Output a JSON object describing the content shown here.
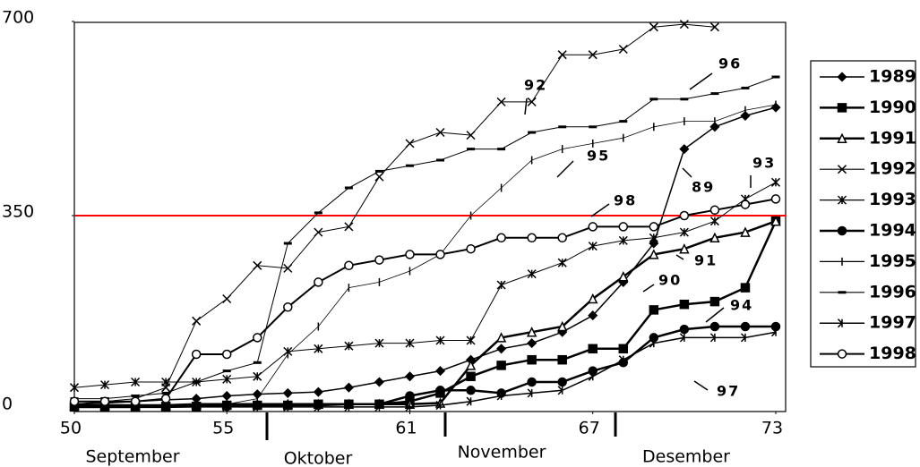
{
  "chart_data": {
    "type": "line",
    "x": [
      50,
      51,
      52,
      53,
      54,
      55,
      56,
      57,
      58,
      59,
      60,
      61,
      62,
      63,
      64,
      65,
      66,
      67,
      68,
      69,
      70,
      71,
      72,
      73
    ],
    "xlim": [
      50,
      73
    ],
    "xticks": [
      50,
      55,
      61,
      67,
      73
    ],
    "ylim": [
      0,
      700
    ],
    "yticks": [
      0,
      350,
      700
    ],
    "reference_line": {
      "value": 350,
      "color": "#ff0000"
    },
    "legend": "right",
    "series": [
      {
        "name": "1989",
        "color": "#000000",
        "marker": "diamond",
        "line_width": 1.5,
        "values": [
          10,
          12,
          15,
          18,
          20,
          25,
          28,
          30,
          32,
          40,
          50,
          60,
          70,
          90,
          110,
          120,
          140,
          170,
          230,
          300,
          470,
          510,
          530,
          545
        ]
      },
      {
        "name": "1990",
        "color": "#000000",
        "marker": "square",
        "line_width": 2.5,
        "values": [
          5,
          5,
          5,
          6,
          6,
          8,
          8,
          8,
          10,
          10,
          10,
          15,
          30,
          60,
          80,
          90,
          90,
          110,
          110,
          180,
          190,
          195,
          220,
          340
        ]
      },
      {
        "name": "1991",
        "color": "#000000",
        "marker": "triangle",
        "line_width": 2.5,
        "values": [
          8,
          8,
          8,
          8,
          10,
          10,
          10,
          10,
          10,
          10,
          10,
          10,
          12,
          80,
          130,
          140,
          150,
          200,
          240,
          280,
          290,
          310,
          320,
          340
        ]
      },
      {
        "name": "1992",
        "color": "#000000",
        "marker": "x",
        "line_width": 1,
        "values": [
          10,
          15,
          20,
          40,
          160,
          200,
          260,
          255,
          320,
          330,
          420,
          480,
          500,
          495,
          555,
          555,
          640,
          640,
          650,
          690,
          695,
          690,
          null,
          null
        ]
      },
      {
        "name": "1993",
        "color": "#000000",
        "marker": "star",
        "line_width": 1,
        "values": [
          40,
          45,
          50,
          50,
          50,
          55,
          60,
          105,
          110,
          115,
          120,
          120,
          125,
          125,
          225,
          245,
          265,
          295,
          305,
          310,
          320,
          340,
          380,
          410
        ]
      },
      {
        "name": "1994",
        "color": "#000000",
        "marker": "circle",
        "line_width": 2.5,
        "values": [
          5,
          5,
          5,
          5,
          6,
          6,
          8,
          8,
          8,
          10,
          10,
          25,
          35,
          35,
          30,
          50,
          50,
          70,
          85,
          130,
          145,
          150,
          150,
          150
        ]
      },
      {
        "name": "1995",
        "color": "#000000",
        "marker": "plus",
        "line_width": 0.8,
        "values": [
          5,
          5,
          5,
          5,
          8,
          10,
          20,
          100,
          150,
          220,
          230,
          250,
          280,
          350,
          400,
          450,
          470,
          480,
          490,
          510,
          520,
          520,
          540,
          550
        ]
      },
      {
        "name": "1996",
        "color": "#000000",
        "marker": "dash",
        "line_width": 1,
        "values": [
          20,
          20,
          25,
          30,
          50,
          70,
          85,
          300,
          355,
          400,
          430,
          440,
          450,
          470,
          470,
          500,
          510,
          510,
          520,
          560,
          560,
          570,
          580,
          600
        ]
      },
      {
        "name": "1997",
        "color": "#000000",
        "marker": "tick",
        "line_width": 1.5,
        "values": [
          5,
          5,
          5,
          5,
          5,
          5,
          5,
          5,
          5,
          5,
          5,
          5,
          8,
          15,
          25,
          30,
          35,
          60,
          90,
          120,
          130,
          130,
          130,
          140
        ]
      },
      {
        "name": "1998",
        "color": "#000000",
        "marker": "open-circle",
        "line_width": 2,
        "values": [
          15,
          15,
          15,
          20,
          100,
          100,
          130,
          185,
          230,
          260,
          270,
          280,
          280,
          290,
          310,
          310,
          310,
          330,
          330,
          330,
          350,
          360,
          370,
          380
        ]
      }
    ],
    "annotations": [
      "92",
      "96",
      "95",
      "98",
      "89",
      "93",
      "91",
      "90",
      "94",
      "97"
    ],
    "month_labels": [
      "September",
      "Oktober",
      "November",
      "Desember"
    ]
  }
}
